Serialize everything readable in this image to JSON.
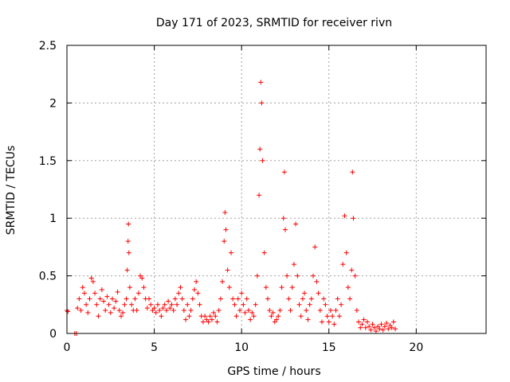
{
  "chart_data": {
    "type": "scatter",
    "title": "Day 171 of 2023, SRMTID for receiver rivn",
    "xlabel": "GPS time / hours",
    "ylabel": "SRMTID / TECUs",
    "xlim": [
      0,
      24
    ],
    "ylim": [
      0,
      2.5
    ],
    "xticks": [
      0,
      5,
      10,
      15,
      20
    ],
    "yticks": [
      0,
      0.5,
      1,
      1.5,
      2,
      2.5
    ],
    "xtick_labels": [
      "0",
      "5",
      "10",
      "15",
      "20"
    ],
    "ytick_labels": [
      "0",
      "0.5",
      "1",
      "1.5",
      "2",
      "2.5"
    ],
    "grid": true,
    "marker": "+",
    "series": [
      {
        "name": "SRMTID",
        "color": "#ff0000",
        "points": [
          [
            0.0,
            0.2
          ],
          [
            0.05,
            0.19
          ],
          [
            0.45,
            0.0
          ],
          [
            0.55,
            0.0
          ],
          [
            0.6,
            0.22
          ],
          [
            0.7,
            0.3
          ],
          [
            0.8,
            0.2
          ],
          [
            0.9,
            0.4
          ],
          [
            1.0,
            0.35
          ],
          [
            1.1,
            0.25
          ],
          [
            1.2,
            0.18
          ],
          [
            1.3,
            0.3
          ],
          [
            1.4,
            0.48
          ],
          [
            1.5,
            0.45
          ],
          [
            1.6,
            0.35
          ],
          [
            1.7,
            0.25
          ],
          [
            1.8,
            0.15
          ],
          [
            1.9,
            0.3
          ],
          [
            2.0,
            0.38
          ],
          [
            2.1,
            0.28
          ],
          [
            2.2,
            0.2
          ],
          [
            2.3,
            0.32
          ],
          [
            2.4,
            0.25
          ],
          [
            2.5,
            0.18
          ],
          [
            2.6,
            0.3
          ],
          [
            2.7,
            0.22
          ],
          [
            2.8,
            0.28
          ],
          [
            2.9,
            0.36
          ],
          [
            3.0,
            0.2
          ],
          [
            3.1,
            0.15
          ],
          [
            3.2,
            0.18
          ],
          [
            3.3,
            0.25
          ],
          [
            3.4,
            0.3
          ],
          [
            3.45,
            0.55
          ],
          [
            3.5,
            0.8
          ],
          [
            3.52,
            0.95
          ],
          [
            3.55,
            0.7
          ],
          [
            3.6,
            0.4
          ],
          [
            3.7,
            0.25
          ],
          [
            3.8,
            0.2
          ],
          [
            3.9,
            0.3
          ],
          [
            4.0,
            0.2
          ],
          [
            4.1,
            0.35
          ],
          [
            4.2,
            0.5
          ],
          [
            4.3,
            0.48
          ],
          [
            4.4,
            0.4
          ],
          [
            4.5,
            0.3
          ],
          [
            4.6,
            0.22
          ],
          [
            4.7,
            0.3
          ],
          [
            4.8,
            0.25
          ],
          [
            4.9,
            0.2
          ],
          [
            5.0,
            0.22
          ],
          [
            5.1,
            0.18
          ],
          [
            5.2,
            0.25
          ],
          [
            5.3,
            0.2
          ],
          [
            5.4,
            0.15
          ],
          [
            5.5,
            0.22
          ],
          [
            5.6,
            0.25
          ],
          [
            5.7,
            0.2
          ],
          [
            5.8,
            0.28
          ],
          [
            5.9,
            0.22
          ],
          [
            6.0,
            0.25
          ],
          [
            6.1,
            0.2
          ],
          [
            6.2,
            0.3
          ],
          [
            6.3,
            0.25
          ],
          [
            6.4,
            0.35
          ],
          [
            6.5,
            0.4
          ],
          [
            6.6,
            0.3
          ],
          [
            6.7,
            0.2
          ],
          [
            6.8,
            0.12
          ],
          [
            6.9,
            0.25
          ],
          [
            7.0,
            0.15
          ],
          [
            7.1,
            0.2
          ],
          [
            7.2,
            0.3
          ],
          [
            7.3,
            0.38
          ],
          [
            7.4,
            0.45
          ],
          [
            7.5,
            0.35
          ],
          [
            7.6,
            0.25
          ],
          [
            7.7,
            0.15
          ],
          [
            7.8,
            0.1
          ],
          [
            7.9,
            0.15
          ],
          [
            8.0,
            0.12
          ],
          [
            8.1,
            0.1
          ],
          [
            8.2,
            0.15
          ],
          [
            8.3,
            0.12
          ],
          [
            8.4,
            0.18
          ],
          [
            8.5,
            0.15
          ],
          [
            8.6,
            0.1
          ],
          [
            8.7,
            0.2
          ],
          [
            8.8,
            0.3
          ],
          [
            8.9,
            0.45
          ],
          [
            9.0,
            0.8
          ],
          [
            9.05,
            1.05
          ],
          [
            9.1,
            0.9
          ],
          [
            9.2,
            0.55
          ],
          [
            9.3,
            0.4
          ],
          [
            9.4,
            0.7
          ],
          [
            9.5,
            0.3
          ],
          [
            9.6,
            0.25
          ],
          [
            9.7,
            0.15
          ],
          [
            9.8,
            0.3
          ],
          [
            9.9,
            0.2
          ],
          [
            10.0,
            0.35
          ],
          [
            10.1,
            0.25
          ],
          [
            10.2,
            0.18
          ],
          [
            10.3,
            0.3
          ],
          [
            10.4,
            0.2
          ],
          [
            10.5,
            0.12
          ],
          [
            10.6,
            0.18
          ],
          [
            10.7,
            0.15
          ],
          [
            10.8,
            0.25
          ],
          [
            10.9,
            0.5
          ],
          [
            11.0,
            1.2
          ],
          [
            11.05,
            1.6
          ],
          [
            11.1,
            2.18
          ],
          [
            11.15,
            2.0
          ],
          [
            11.2,
            1.5
          ],
          [
            11.3,
            0.7
          ],
          [
            11.4,
            0.4
          ],
          [
            11.5,
            0.3
          ],
          [
            11.6,
            0.2
          ],
          [
            11.7,
            0.15
          ],
          [
            11.8,
            0.18
          ],
          [
            11.9,
            0.1
          ],
          [
            12.0,
            0.12
          ],
          [
            12.1,
            0.15
          ],
          [
            12.2,
            0.2
          ],
          [
            12.3,
            0.4
          ],
          [
            12.4,
            1.0
          ],
          [
            12.45,
            1.4
          ],
          [
            12.5,
            0.9
          ],
          [
            12.6,
            0.5
          ],
          [
            12.7,
            0.3
          ],
          [
            12.8,
            0.2
          ],
          [
            12.9,
            0.4
          ],
          [
            13.0,
            0.6
          ],
          [
            13.1,
            0.95
          ],
          [
            13.2,
            0.5
          ],
          [
            13.3,
            0.25
          ],
          [
            13.4,
            0.15
          ],
          [
            13.5,
            0.3
          ],
          [
            13.6,
            0.35
          ],
          [
            13.7,
            0.2
          ],
          [
            13.8,
            0.12
          ],
          [
            13.9,
            0.25
          ],
          [
            14.0,
            0.3
          ],
          [
            14.1,
            0.5
          ],
          [
            14.2,
            0.75
          ],
          [
            14.3,
            0.45
          ],
          [
            14.4,
            0.35
          ],
          [
            14.5,
            0.2
          ],
          [
            14.6,
            0.1
          ],
          [
            14.7,
            0.3
          ],
          [
            14.8,
            0.25
          ],
          [
            14.9,
            0.15
          ],
          [
            15.0,
            0.1
          ],
          [
            15.1,
            0.2
          ],
          [
            15.2,
            0.15
          ],
          [
            15.3,
            0.08
          ],
          [
            15.4,
            0.2
          ],
          [
            15.5,
            0.3
          ],
          [
            15.6,
            0.15
          ],
          [
            15.7,
            0.25
          ],
          [
            15.8,
            0.6
          ],
          [
            15.9,
            1.02
          ],
          [
            16.0,
            0.7
          ],
          [
            16.1,
            0.4
          ],
          [
            16.2,
            0.3
          ],
          [
            16.3,
            0.55
          ],
          [
            16.35,
            1.4
          ],
          [
            16.4,
            1.0
          ],
          [
            16.5,
            0.5
          ],
          [
            16.6,
            0.2
          ],
          [
            16.7,
            0.1
          ],
          [
            16.8,
            0.05
          ],
          [
            16.9,
            0.08
          ],
          [
            17.0,
            0.12
          ],
          [
            17.1,
            0.05
          ],
          [
            17.2,
            0.1
          ],
          [
            17.3,
            0.06
          ],
          [
            17.4,
            0.03
          ],
          [
            17.5,
            0.08
          ],
          [
            17.6,
            0.05
          ],
          [
            17.7,
            0.02
          ],
          [
            17.8,
            0.06
          ],
          [
            17.9,
            0.04
          ],
          [
            18.0,
            0.08
          ],
          [
            18.1,
            0.03
          ],
          [
            18.2,
            0.06
          ],
          [
            18.3,
            0.09
          ],
          [
            18.4,
            0.04
          ],
          [
            18.5,
            0.07
          ],
          [
            18.6,
            0.05
          ],
          [
            18.7,
            0.1
          ],
          [
            18.8,
            0.04
          ]
        ]
      }
    ]
  }
}
